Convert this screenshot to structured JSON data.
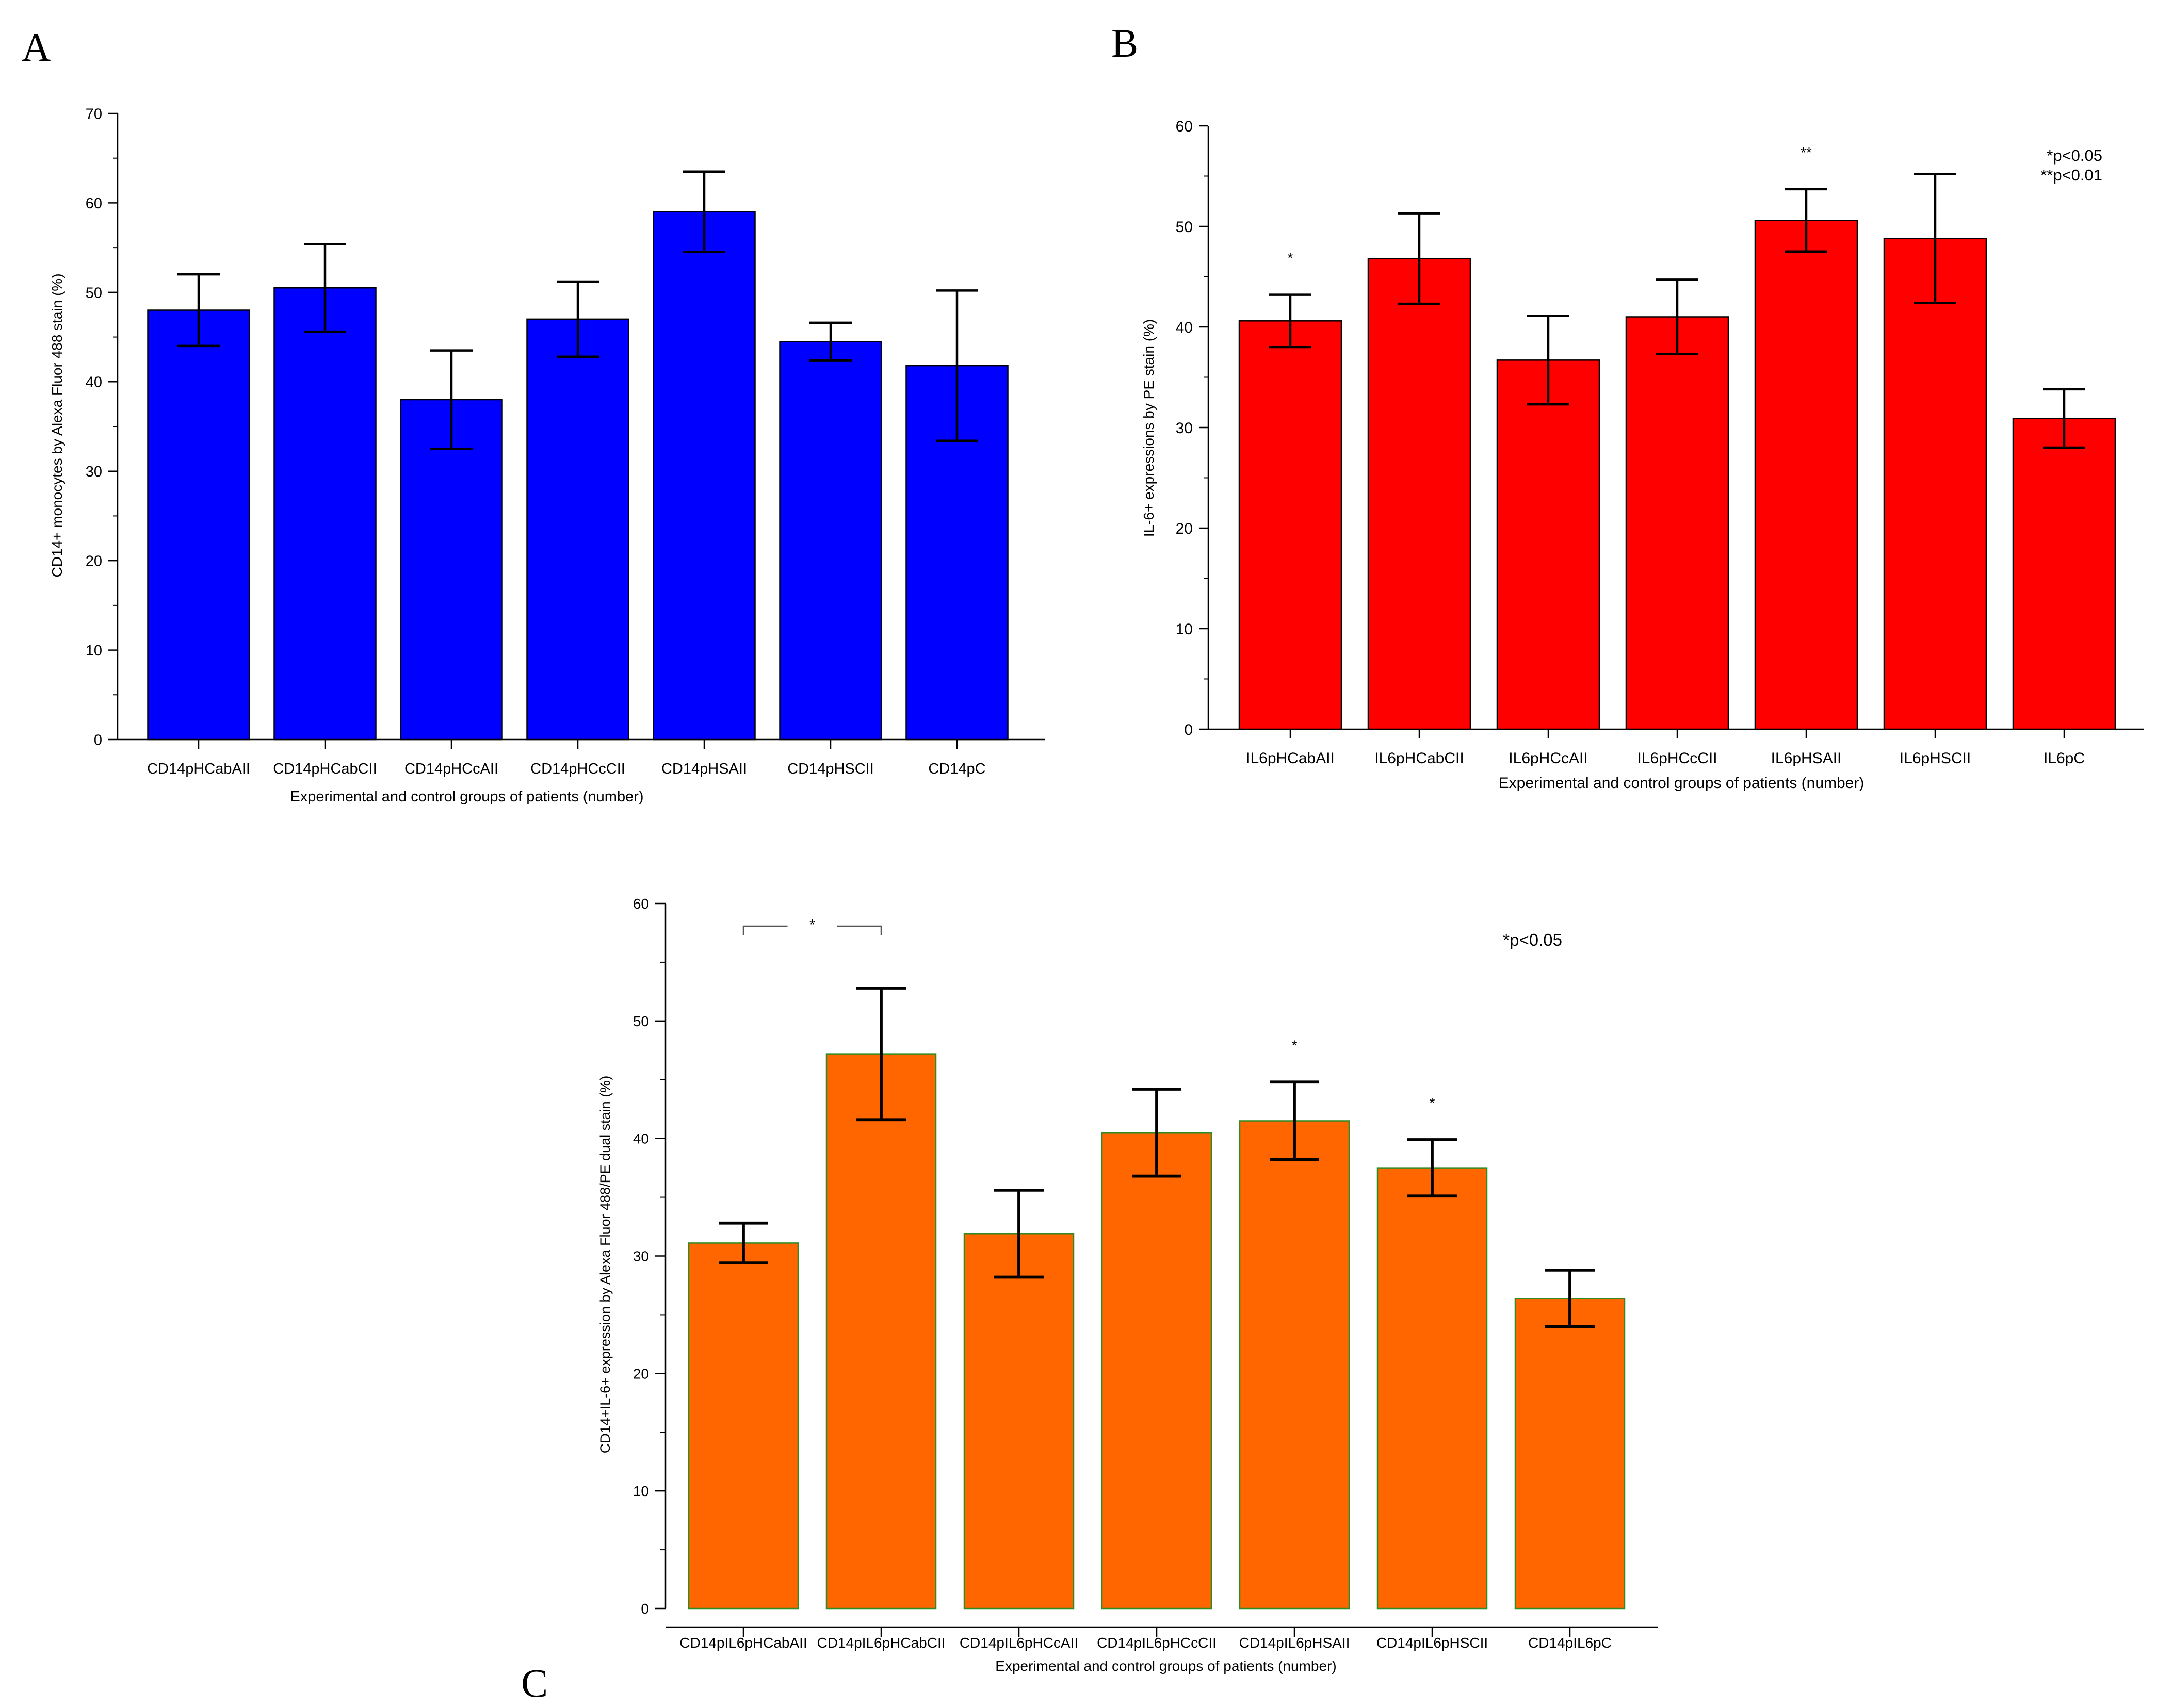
{
  "chart_data": [
    {
      "type": "bar",
      "panel_label": "A",
      "title": "",
      "xlabel": "Experimental and control groups of patients (number)",
      "ylabel": "CD14+ monocytes by Alexa Fluor 488 stain (%)",
      "ylim": [
        0,
        70
      ],
      "yticks": [
        0,
        10,
        20,
        30,
        40,
        50,
        60,
        70
      ],
      "bar_color": "#0000FF",
      "bar_edge": "#000000",
      "categories": [
        "CD14pHCabAII",
        "CD14pHCabCII",
        "CD14pHCcAII",
        "CD14pHCcCII",
        "CD14pHSAII",
        "CD14pHSCII",
        "CD14pC"
      ],
      "values": [
        48,
        50.5,
        38,
        47,
        59,
        44.5,
        41.8
      ],
      "error": [
        4,
        4.9,
        5.5,
        4.2,
        4.5,
        2.1,
        8.4
      ],
      "markers": [
        "",
        "",
        "",
        "",
        "",
        "",
        ""
      ],
      "notes": [],
      "brackets": []
    },
    {
      "type": "bar",
      "panel_label": "B",
      "title": "",
      "xlabel": "Experimental and control groups of patients (number)",
      "ylabel": "IL-6+ expressions by PE stain (%)",
      "ylim": [
        0,
        60
      ],
      "yticks": [
        0,
        10,
        20,
        30,
        40,
        50,
        60
      ],
      "bar_color": "#FF0000",
      "bar_edge": "#000000",
      "categories": [
        "IL6pHCabAII",
        "IL6pHCabCII",
        "IL6pHCcAII",
        "IL6pHCcCII",
        "IL6pHSAII",
        "IL6pHSCII",
        "IL6pC"
      ],
      "values": [
        40.6,
        46.8,
        36.7,
        41,
        50.6,
        48.8,
        30.9
      ],
      "error": [
        2.6,
        4.5,
        4.4,
        3.7,
        3.1,
        6.4,
        2.9
      ],
      "markers": [
        "*",
        "",
        "",
        "",
        "**",
        "",
        ""
      ],
      "notes": [
        "*p<0.05",
        "**p<0.01"
      ],
      "brackets": []
    },
    {
      "type": "bar",
      "panel_label": "C",
      "title": "",
      "xlabel": "Experimental and control groups of patients (number)",
      "ylabel": "CD14+IL-6+ expression by Alexa Fluor 488/PE dual stain (%)",
      "ylim": [
        0,
        60
      ],
      "yticks": [
        0,
        10,
        20,
        30,
        40,
        50,
        60
      ],
      "bar_color": "#FF6600",
      "bar_edge": "#2E8B22",
      "categories": [
        "CD14pIL6pHCabAII",
        "CD14pIL6pHCabCII",
        "CD14pIL6pHCcAII",
        "CD14pIL6pHCcCII",
        "CD14pIL6pHSAII",
        "CD14pIL6pHSCII",
        "CD14pIL6pC"
      ],
      "values": [
        31.1,
        47.2,
        31.9,
        40.5,
        41.5,
        37.5,
        26.4
      ],
      "error": [
        1.7,
        5.6,
        3.7,
        3.7,
        3.3,
        2.4,
        2.4
      ],
      "markers": [
        "",
        "",
        "",
        "",
        "*",
        "*",
        ""
      ],
      "notes": [
        "*p<0.05"
      ],
      "brackets": [
        {
          "from": 0,
          "to": 1,
          "label": "*"
        }
      ]
    }
  ]
}
